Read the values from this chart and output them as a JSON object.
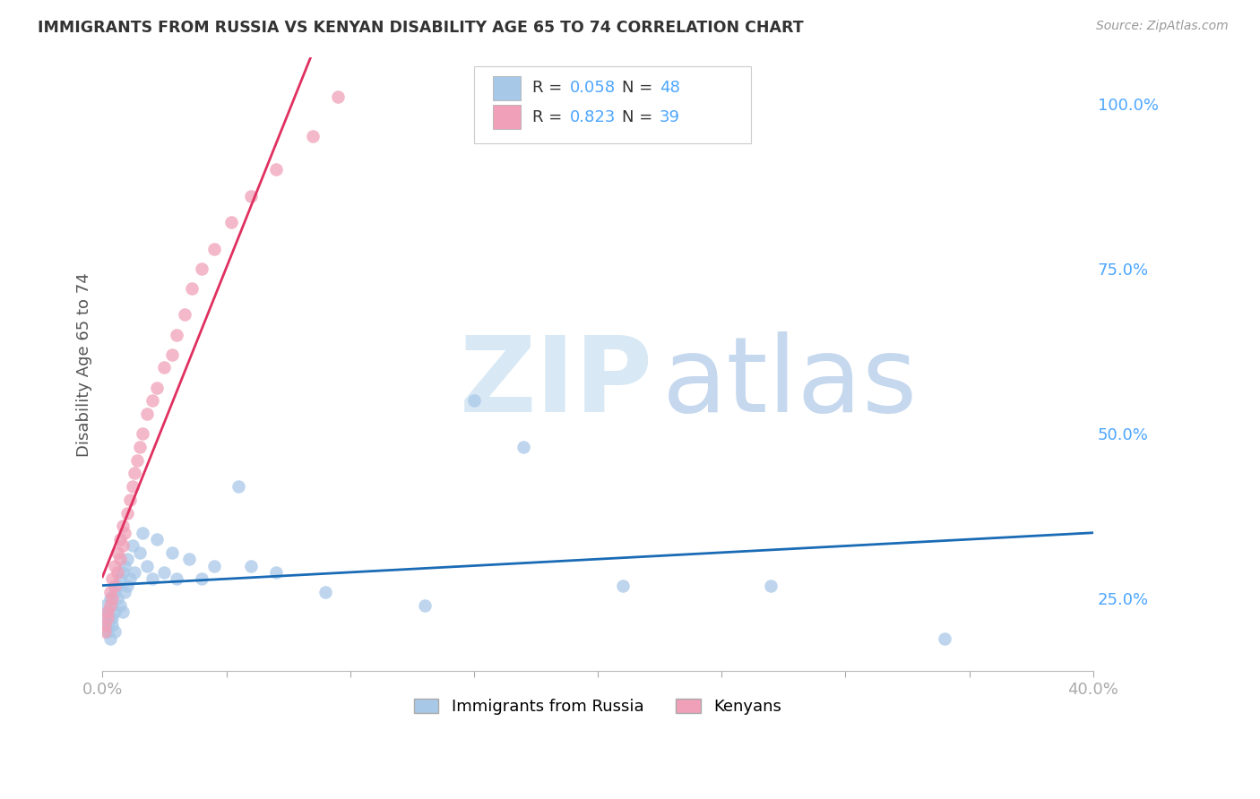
{
  "title": "IMMIGRANTS FROM RUSSIA VS KENYAN DISABILITY AGE 65 TO 74 CORRELATION CHART",
  "source": "Source: ZipAtlas.com",
  "ylabel": "Disability Age 65 to 74",
  "xlim": [
    0.0,
    0.4
  ],
  "ylim": [
    0.14,
    1.07
  ],
  "blue_color": "#a8c8e8",
  "pink_color": "#f0a0b8",
  "blue_line_color": "#1a6bb5",
  "pink_line_color": "#e03060",
  "R_blue": 0.058,
  "N_blue": 48,
  "R_pink": 0.823,
  "N_pink": 39,
  "legend_entries": [
    "Immigrants from Russia",
    "Kenyans"
  ],
  "ytick_vals": [
    0.25,
    0.5,
    0.75,
    1.0
  ],
  "yticklabels": [
    "25.0%",
    "50.0%",
    "75.0%",
    "100.0%"
  ],
  "xtick_vals": [
    0.0,
    0.05,
    0.1,
    0.15,
    0.2,
    0.25,
    0.3,
    0.35,
    0.4
  ],
  "xticklabels": [
    "0.0%",
    "",
    "",
    "",
    "",
    "",
    "",
    "",
    "40.0%"
  ],
  "blue_scatter_x": [
    0.001,
    0.001,
    0.002,
    0.002,
    0.002,
    0.003,
    0.003,
    0.003,
    0.004,
    0.004,
    0.004,
    0.005,
    0.005,
    0.005,
    0.006,
    0.006,
    0.007,
    0.007,
    0.008,
    0.008,
    0.009,
    0.009,
    0.01,
    0.01,
    0.011,
    0.012,
    0.013,
    0.015,
    0.016,
    0.018,
    0.02,
    0.022,
    0.025,
    0.028,
    0.03,
    0.035,
    0.04,
    0.045,
    0.055,
    0.06,
    0.07,
    0.09,
    0.13,
    0.15,
    0.17,
    0.21,
    0.27,
    0.34
  ],
  "blue_scatter_y": [
    0.22,
    0.24,
    0.21,
    0.23,
    0.2,
    0.25,
    0.22,
    0.19,
    0.24,
    0.22,
    0.21,
    0.26,
    0.23,
    0.2,
    0.27,
    0.25,
    0.28,
    0.24,
    0.29,
    0.23,
    0.3,
    0.26,
    0.31,
    0.27,
    0.28,
    0.33,
    0.29,
    0.32,
    0.35,
    0.3,
    0.28,
    0.34,
    0.29,
    0.32,
    0.28,
    0.31,
    0.28,
    0.3,
    0.42,
    0.3,
    0.29,
    0.26,
    0.24,
    0.55,
    0.48,
    0.27,
    0.27,
    0.19
  ],
  "pink_scatter_x": [
    0.001,
    0.001,
    0.002,
    0.002,
    0.003,
    0.003,
    0.004,
    0.004,
    0.005,
    0.005,
    0.006,
    0.006,
    0.007,
    0.007,
    0.008,
    0.008,
    0.009,
    0.01,
    0.011,
    0.012,
    0.013,
    0.014,
    0.015,
    0.016,
    0.018,
    0.02,
    0.022,
    0.025,
    0.028,
    0.03,
    0.033,
    0.036,
    0.04,
    0.045,
    0.052,
    0.06,
    0.07,
    0.085,
    0.095
  ],
  "pink_scatter_y": [
    0.21,
    0.2,
    0.23,
    0.22,
    0.24,
    0.26,
    0.25,
    0.28,
    0.27,
    0.3,
    0.29,
    0.32,
    0.31,
    0.34,
    0.33,
    0.36,
    0.35,
    0.38,
    0.4,
    0.42,
    0.44,
    0.46,
    0.48,
    0.5,
    0.53,
    0.55,
    0.57,
    0.6,
    0.62,
    0.65,
    0.68,
    0.72,
    0.75,
    0.78,
    0.82,
    0.86,
    0.9,
    0.95,
    1.01
  ],
  "background_color": "#ffffff",
  "grid_color": "#d0d0d0",
  "tick_color": "#4da6ff",
  "title_color": "#333333",
  "ylabel_color": "#555555"
}
